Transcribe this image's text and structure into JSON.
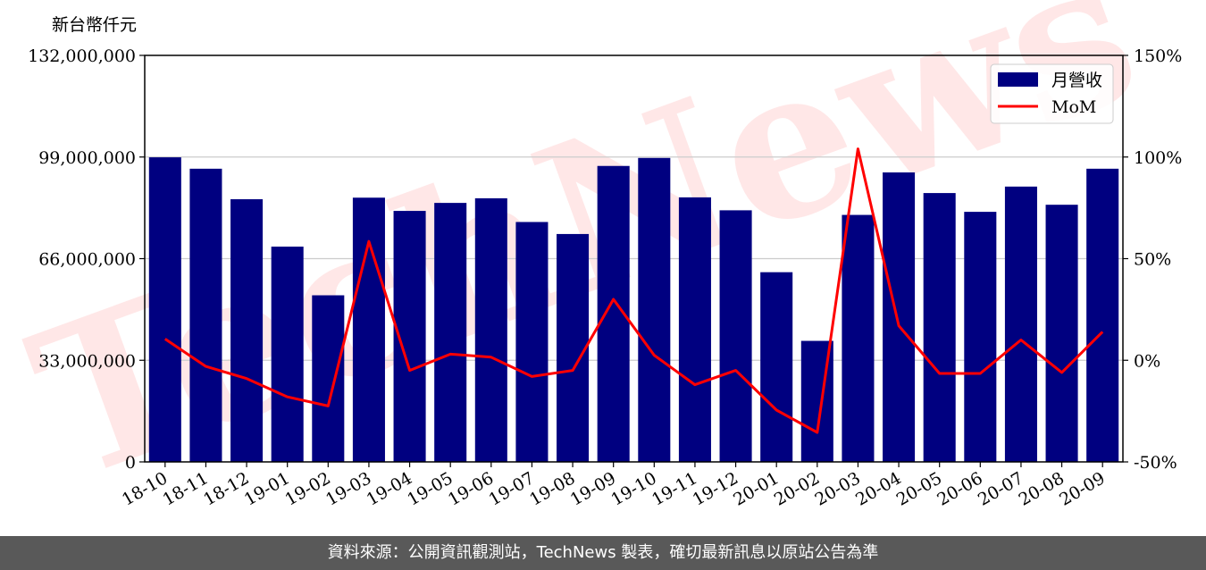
{
  "chart_data": {
    "type": "bar",
    "categories": [
      "18-10",
      "18-11",
      "18-12",
      "19-01",
      "19-02",
      "19-03",
      "19-04",
      "19-05",
      "19-06",
      "19-07",
      "19-08",
      "19-09",
      "19-10",
      "19-11",
      "19-12",
      "20-01",
      "20-02",
      "20-03",
      "20-04",
      "20-05",
      "20-06",
      "20-07",
      "20-08",
      "20-09"
    ],
    "series": [
      {
        "name": "月營收",
        "type": "bar",
        "axis": "left",
        "values": [
          98900000,
          95200000,
          85300000,
          69900000,
          54100000,
          85800000,
          81500000,
          84100000,
          85600000,
          77900000,
          74000000,
          96100000,
          98700000,
          85900000,
          81700000,
          61600000,
          39300000,
          80200000,
          94000000,
          87300000,
          81200000,
          89400000,
          83500000,
          95200000
        ]
      },
      {
        "name": "MoM",
        "type": "line",
        "axis": "right",
        "values": [
          10.5,
          -3,
          -9,
          -18,
          -22.5,
          58.5,
          -5,
          3,
          1.5,
          -8,
          -5,
          30,
          2.5,
          -12,
          -5,
          -24.5,
          -35.5,
          104,
          17,
          -6.5,
          -6.5,
          10,
          -6,
          14
        ]
      }
    ],
    "ylabel": "新台幣仟元",
    "y_left_ticks": [
      "0",
      "33,000,000",
      "66,000,000",
      "99,000,000",
      "132,000,000"
    ],
    "y_right_ticks": [
      "-50%",
      "0%",
      "50%",
      "100%",
      "150%"
    ],
    "ylim_left": [
      0,
      132000000
    ],
    "ylim_right": [
      -50,
      150
    ],
    "grid": true,
    "legend_position": "top-right",
    "colors": {
      "bar": "#000080",
      "line": "#ff0000"
    },
    "watermark": "TechNews"
  },
  "footer": {
    "text": "資料來源：公開資訊觀測站，TechNews 製表，確切最新訊息以原站公告為準"
  }
}
